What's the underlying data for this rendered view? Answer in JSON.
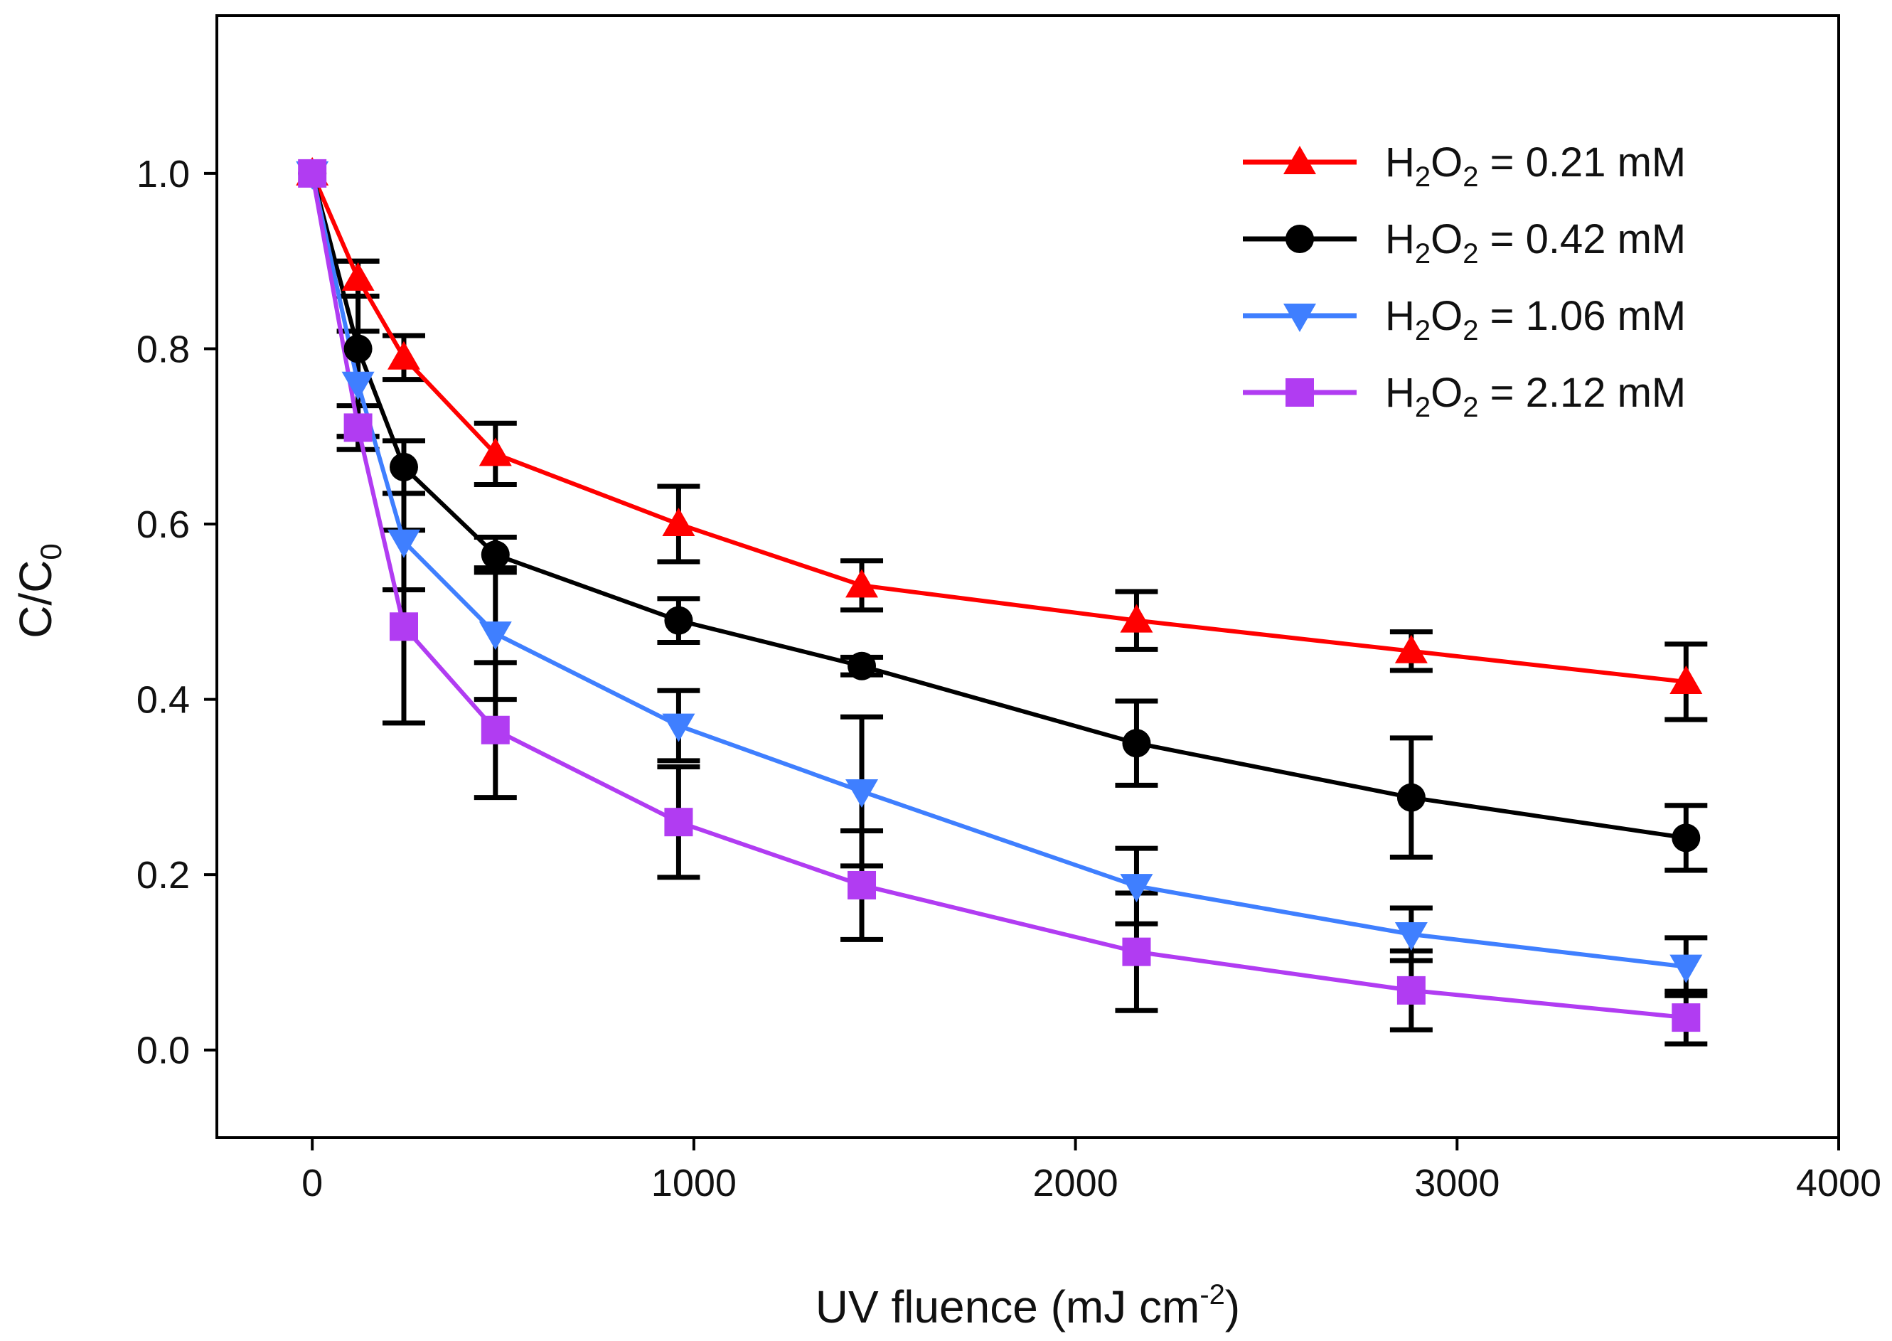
{
  "chart_data": {
    "type": "line",
    "title": "",
    "xlabel": "UV fluence (mJ cm",
    "xlabel_sup": "-2",
    "xlabel_close": ")",
    "ylabel_main": "C/C",
    "ylabel_sub": "0",
    "xlim": [
      -250,
      4000
    ],
    "ylim": [
      -0.1,
      1.18
    ],
    "xticks": [
      0,
      1000,
      2000,
      3000,
      4000
    ],
    "xtick_labels": [
      "0",
      "1000",
      "2000",
      "3000",
      "4000"
    ],
    "yticks": [
      0.0,
      0.2,
      0.4,
      0.6,
      0.8,
      1.0
    ],
    "ytick_labels": [
      "0.0",
      "0.2",
      "0.4",
      "0.6",
      "0.8",
      "1.0"
    ],
    "grid": false,
    "legend_position": "top-right",
    "series": [
      {
        "name": "H2O2 = 0.21 mM",
        "label_main": "H",
        "label_sub1": "2",
        "label_mid": "O",
        "label_sub2": "2",
        "label_tail": " = 0.21 mM",
        "marker": "triangle-up",
        "color": "#ff0000",
        "x": [
          0,
          120,
          240,
          480,
          960,
          1440,
          2160,
          2880,
          3600
        ],
        "y": [
          1.0,
          0.88,
          0.79,
          0.68,
          0.6,
          0.53,
          0.49,
          0.455,
          0.42
        ],
        "err": [
          0.0,
          0.02,
          0.025,
          0.035,
          0.043,
          0.028,
          0.033,
          0.022,
          0.043
        ]
      },
      {
        "name": "H2O2 = 0.42 mM",
        "label_main": "H",
        "label_sub1": "2",
        "label_mid": "O",
        "label_sub2": "2",
        "label_tail": " = 0.42 mM",
        "marker": "circle",
        "color": "#000000",
        "x": [
          0,
          120,
          240,
          480,
          960,
          1440,
          2160,
          2880,
          3600
        ],
        "y": [
          1.0,
          0.8,
          0.665,
          0.565,
          0.49,
          0.438,
          0.35,
          0.288,
          0.242
        ],
        "err": [
          0.0,
          0.1,
          0.03,
          0.02,
          0.025,
          0.01,
          0.048,
          0.068,
          0.037
        ]
      },
      {
        "name": "H2O2 = 1.06 mM",
        "label_main": "H",
        "label_sub1": "2",
        "label_mid": "O",
        "label_sub2": "2",
        "label_tail": " = 1.06 mM",
        "marker": "triangle-down",
        "color": "#3f7fff",
        "x": [
          0,
          120,
          240,
          480,
          960,
          1440,
          2160,
          2880,
          3600
        ],
        "y": [
          1.0,
          0.76,
          0.58,
          0.475,
          0.37,
          0.295,
          0.187,
          0.132,
          0.095
        ],
        "err": [
          0.0,
          0.06,
          0.055,
          0.075,
          0.04,
          0.085,
          0.043,
          0.03,
          0.033
        ]
      },
      {
        "name": "H2O2 = 2.12 mM",
        "label_main": "H",
        "label_sub1": "2",
        "label_mid": "O",
        "label_sub2": "2",
        "label_tail": " = 2.12 mM",
        "marker": "square",
        "color": "#b13cf2",
        "x": [
          0,
          120,
          240,
          480,
          960,
          1440,
          2160,
          2880,
          3600
        ],
        "y": [
          1.0,
          0.71,
          0.483,
          0.365,
          0.26,
          0.188,
          0.112,
          0.068,
          0.037
        ],
        "err": [
          0.0,
          0.025,
          0.11,
          0.077,
          0.063,
          0.062,
          0.067,
          0.045,
          0.03
        ]
      }
    ]
  }
}
